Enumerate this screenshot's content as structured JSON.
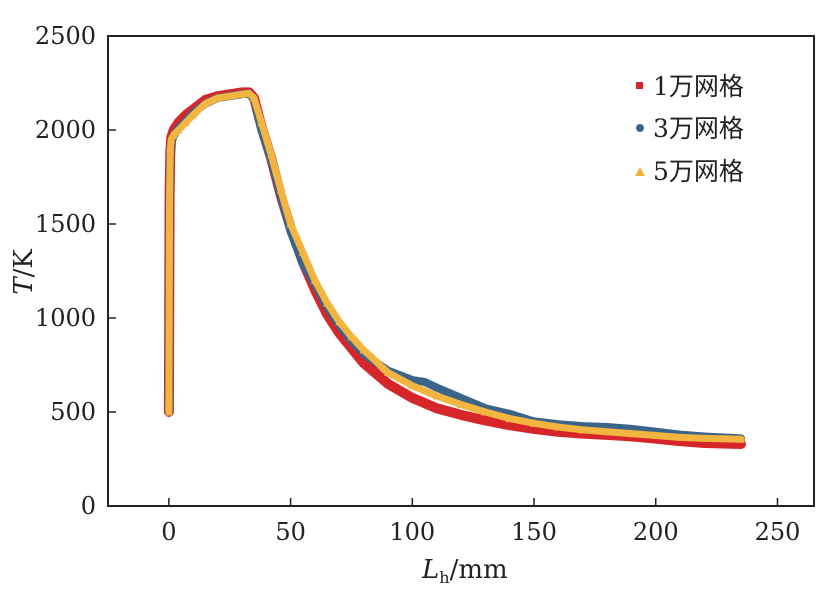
{
  "chart_data": {
    "type": "scatter",
    "title": "",
    "xlabel_main": "L",
    "xlabel_sub": "h",
    "xlabel_unit": "/mm",
    "ylabel_main": "T",
    "ylabel_unit": "/K",
    "xlim": [
      -25,
      265
    ],
    "ylim": [
      0,
      2500
    ],
    "x_ticks": [
      0,
      50,
      100,
      150,
      200,
      250
    ],
    "y_ticks": [
      0,
      500,
      1000,
      1500,
      2000,
      2500
    ],
    "grid": false,
    "legend_position": "top-right",
    "series": [
      {
        "name": "1万网格",
        "color": "#d6262a",
        "marker": "square",
        "x": [
          0,
          0.3,
          0.6,
          1,
          2,
          4,
          7,
          10,
          15,
          20,
          25,
          30,
          33,
          35,
          38,
          42,
          46,
          50,
          55,
          60,
          65,
          70,
          75,
          80,
          90,
          100,
          110,
          120,
          130,
          140,
          150,
          160,
          170,
          180,
          190,
          200,
          210,
          220,
          235
        ],
        "y": [
          500,
          1650,
          1880,
          1960,
          2000,
          2040,
          2080,
          2110,
          2160,
          2180,
          2190,
          2200,
          2200,
          2170,
          2020,
          1850,
          1650,
          1480,
          1300,
          1150,
          1020,
          920,
          840,
          760,
          650,
          575,
          520,
          485,
          455,
          430,
          410,
          395,
          385,
          378,
          370,
          358,
          345,
          335,
          330
        ]
      },
      {
        "name": "3万网格",
        "color": "#3a6489",
        "marker": "circle",
        "x": [
          0,
          0.3,
          0.6,
          1,
          2,
          4,
          7,
          10,
          15,
          20,
          25,
          30,
          33,
          35,
          38,
          42,
          46,
          50,
          55,
          60,
          65,
          70,
          75,
          80,
          90,
          100,
          105,
          110,
          120,
          130,
          140,
          150,
          160,
          170,
          180,
          190,
          200,
          210,
          220,
          235
        ],
        "y": [
          500,
          1620,
          1850,
          1930,
          1970,
          2010,
          2050,
          2090,
          2140,
          2170,
          2180,
          2190,
          2195,
          2165,
          2000,
          1840,
          1650,
          1460,
          1290,
          1180,
          1060,
          960,
          880,
          810,
          720,
          670,
          660,
          630,
          575,
          520,
          490,
          450,
          435,
          425,
          420,
          410,
          395,
          380,
          370,
          360
        ]
      },
      {
        "name": "5万网格",
        "color": "#f2b640",
        "marker": "triangle",
        "x": [
          0,
          0.3,
          0.6,
          1,
          2,
          4,
          7,
          10,
          15,
          20,
          25,
          30,
          33,
          35,
          38,
          42,
          46,
          50,
          55,
          60,
          65,
          70,
          75,
          80,
          90,
          100,
          110,
          120,
          130,
          140,
          150,
          160,
          170,
          180,
          190,
          200,
          210,
          220,
          235
        ],
        "y": [
          500,
          1650,
          1900,
          1950,
          1975,
          2000,
          2040,
          2080,
          2140,
          2170,
          2180,
          2190,
          2195,
          2170,
          2040,
          1870,
          1680,
          1500,
          1350,
          1200,
          1080,
          980,
          900,
          830,
          710,
          640,
          585,
          540,
          500,
          465,
          440,
          420,
          405,
          395,
          385,
          375,
          365,
          360,
          355
        ]
      }
    ]
  }
}
